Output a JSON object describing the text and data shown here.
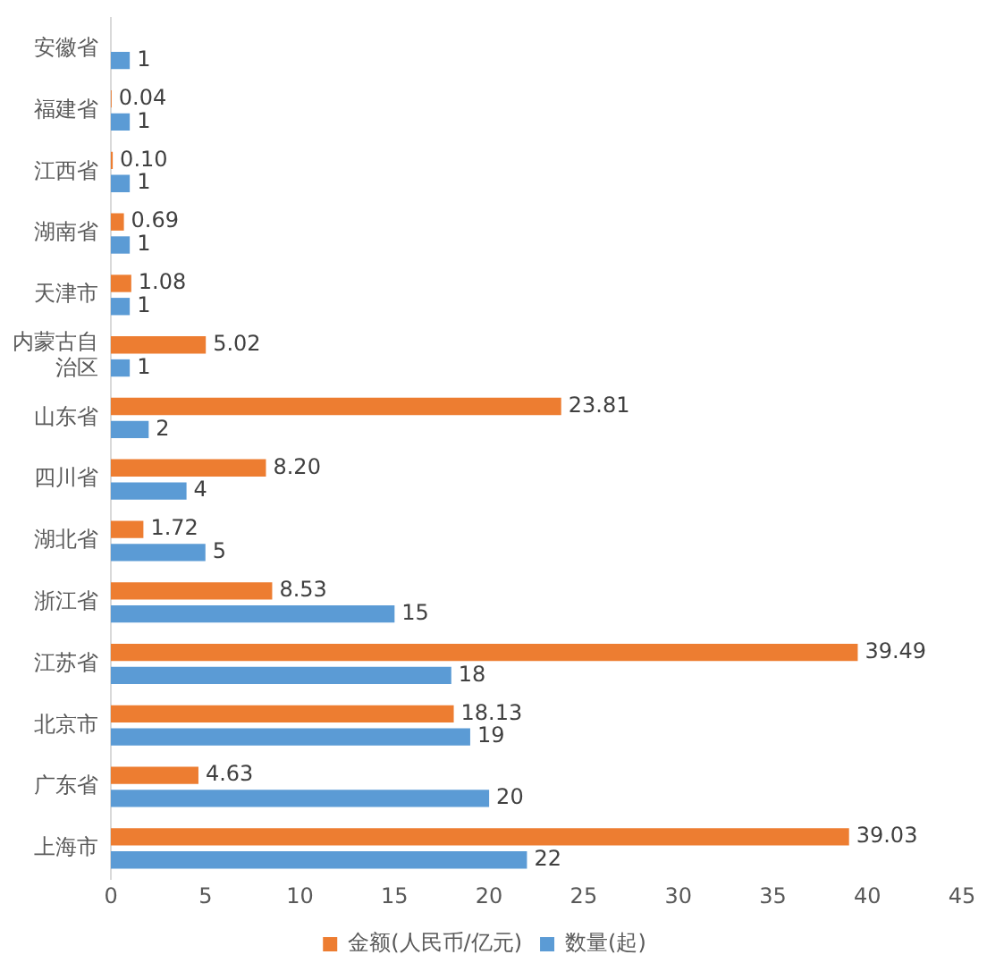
{
  "chart_data": {
    "type": "bar",
    "orientation": "horizontal",
    "categories": [
      "安徽省",
      "福建省",
      "江西省",
      "湖南省",
      "天津市",
      "内蒙古自治区",
      "山东省",
      "四川省",
      "湖北省",
      "浙江省",
      "江苏省",
      "北京市",
      "广东省",
      "上海市"
    ],
    "series": [
      {
        "name": "金额(人民币/亿元)",
        "color": "#ed7d31",
        "values": [
          null,
          0.04,
          0.1,
          0.69,
          1.08,
          5.02,
          23.81,
          8.2,
          1.72,
          8.53,
          39.49,
          18.13,
          4.63,
          39.03
        ],
        "value_labels": [
          null,
          "0.04",
          "0.10",
          "0.69",
          "1.08",
          "5.02",
          "23.81",
          "8.20",
          "1.72",
          "8.53",
          "39.49",
          "18.13",
          "4.63",
          "39.03"
        ]
      },
      {
        "name": "数量(起)",
        "color": "#5b9bd5",
        "values": [
          1,
          1,
          1,
          1,
          1,
          1,
          2,
          4,
          5,
          15,
          18,
          19,
          20,
          22
        ],
        "value_labels": [
          "1",
          "1",
          "1",
          "1",
          "1",
          "1",
          "2",
          "4",
          "5",
          "15",
          "18",
          "19",
          "20",
          "22"
        ]
      }
    ],
    "xlim": [
      0,
      45
    ],
    "xticks": [
      0,
      5,
      10,
      15,
      20,
      25,
      30,
      35,
      40,
      45
    ],
    "grid": false,
    "legend": "bottom"
  }
}
